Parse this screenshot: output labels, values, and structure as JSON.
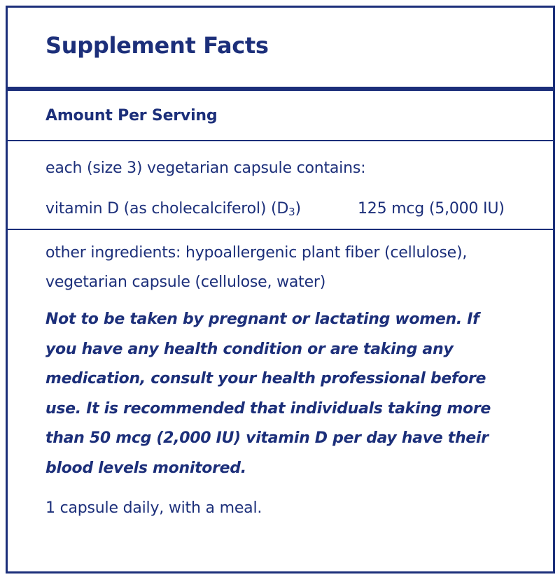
{
  "label": {
    "title": "Supplement Facts",
    "amount_per_serving": "Amount Per Serving",
    "serving_size": "each (size 3) vegetarian capsule contains:",
    "nutrients": [
      {
        "name": "vitamin D (as cholecalciferol) (D",
        "subscript": "3",
        "name_suffix": ")",
        "amount": "125 mcg (5,000 IU)"
      }
    ],
    "other_ingredients": "other ingredients: hypoallergenic plant fiber (cellulose), vegetarian capsule (cellulose, water)",
    "warning": "Not to be taken by pregnant or lactating women. If you have any health condition or are taking any medication, consult your health professional before use. It is recommended that individuals taking more than 50 mcg (2,000 IU) vitamin D per day have their blood levels monitored.",
    "directions": "1 capsule daily, with a meal."
  },
  "colors": {
    "ink": "#1c2f7a",
    "background": "#ffffff"
  }
}
